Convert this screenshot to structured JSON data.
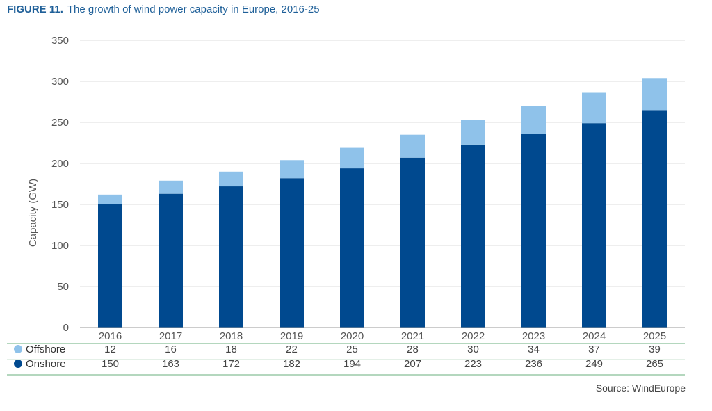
{
  "figure": {
    "number": "FIGURE 11.",
    "title": "The growth of wind power capacity in Europe, 2016-25",
    "source": "Source: WindEurope"
  },
  "chart_data": {
    "type": "bar",
    "stacked": true,
    "categories": [
      "2016",
      "2017",
      "2018",
      "2019",
      "2020",
      "2021",
      "2022",
      "2023",
      "2024",
      "2025"
    ],
    "series": [
      {
        "name": "Onshore",
        "color": "#00498f",
        "values": [
          150,
          163,
          172,
          182,
          194,
          207,
          223,
          236,
          249,
          265
        ]
      },
      {
        "name": "Offshore",
        "color": "#8fc2ea",
        "values": [
          12,
          16,
          18,
          22,
          25,
          28,
          30,
          34,
          37,
          39
        ]
      }
    ],
    "ylabel": "Capacity (GW)",
    "ylim": [
      0,
      350
    ],
    "yticks": [
      0,
      50,
      100,
      150,
      200,
      250,
      300,
      350
    ],
    "grid": true,
    "data_table": {
      "rows": [
        "Offshore",
        "Onshore"
      ]
    }
  }
}
